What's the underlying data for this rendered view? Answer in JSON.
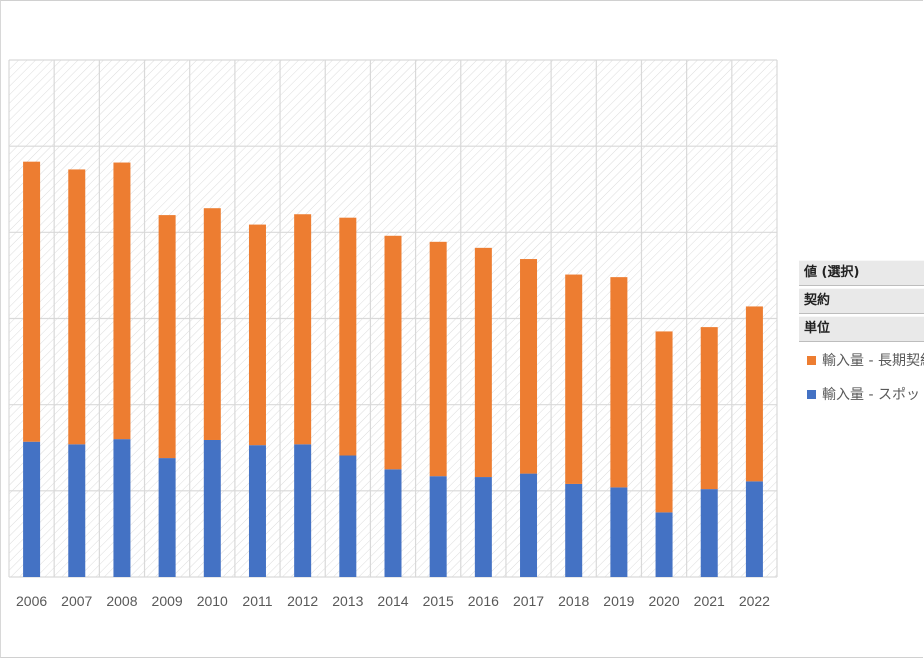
{
  "field_buttons": {
    "values": "値 (選択)",
    "contract": "契約",
    "unit": "単位"
  },
  "legend": {
    "long_term": "輸入量 - 長期契約",
    "spot": "輸入量 - スポット"
  },
  "colors": {
    "long_term": "#ED7D31",
    "spot": "#4472C4",
    "grid": "#d9d9d9",
    "tick_text": "#595959"
  },
  "chart_data": {
    "type": "bar",
    "stacked": true,
    "categories": [
      "2006",
      "2007",
      "2008",
      "2009",
      "2010",
      "2011",
      "2012",
      "2013",
      "2014",
      "2015",
      "2016",
      "2017",
      "2018",
      "2019",
      "2020",
      "2021",
      "2022"
    ],
    "series": [
      {
        "name": "輸入量 - スポット",
        "values": [
          157,
          154,
          160,
          138,
          159,
          153,
          154,
          141,
          125,
          117,
          116,
          120,
          108,
          104,
          75,
          102,
          111
        ]
      },
      {
        "name": "輸入量 - 長期契約",
        "values": [
          325,
          319,
          321,
          282,
          269,
          256,
          267,
          276,
          271,
          272,
          266,
          249,
          243,
          244,
          210,
          188,
          203
        ]
      }
    ],
    "ylim": [
      0,
      600
    ],
    "grid": true,
    "legend_position": "right",
    "xlabel": "",
    "ylabel": "",
    "title": ""
  }
}
